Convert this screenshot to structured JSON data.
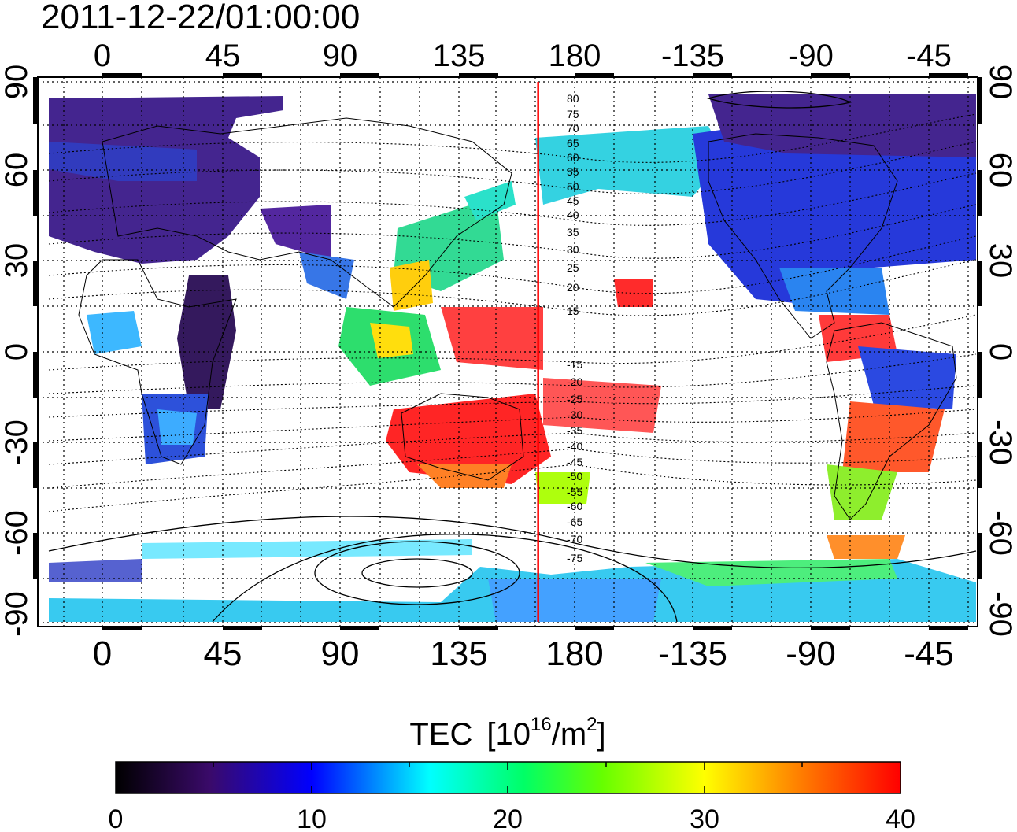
{
  "timestamp": "2011-12-22/01:00:00",
  "x_ticks": [
    "0",
    "45",
    "90",
    "135",
    "180",
    "-135",
    "-90",
    "-45"
  ],
  "y_ticks": [
    "90",
    "60",
    "30",
    "0",
    "-30",
    "-60",
    "-90"
  ],
  "contour_labels_north": [
    "80",
    "75",
    "70",
    "65",
    "60",
    "55",
    "50",
    "45",
    "40",
    "35",
    "30",
    "25",
    "20",
    "15"
  ],
  "contour_labels_south": [
    "-15",
    "-20",
    "-25",
    "-30",
    "-35",
    "-40",
    "-45",
    "-50",
    "-55",
    "-60",
    "-65",
    "-70",
    "-75"
  ],
  "colorbar": {
    "title": "TEC",
    "unit_base": "10",
    "unit_exp": "16",
    "unit_mid": "/m",
    "unit_exp2": "2",
    "ticks": [
      "0",
      "10",
      "20",
      "30",
      "40"
    ],
    "min": 0,
    "max": 40
  },
  "meridian_marker_longitude": 165,
  "colors": {
    "marker": "#ff0000",
    "colormap": [
      "#000000",
      "#3a0a6a",
      "#0000ff",
      "#00ffff",
      "#00ff00",
      "#ffff00",
      "#ff8000",
      "#ff0000"
    ]
  }
}
